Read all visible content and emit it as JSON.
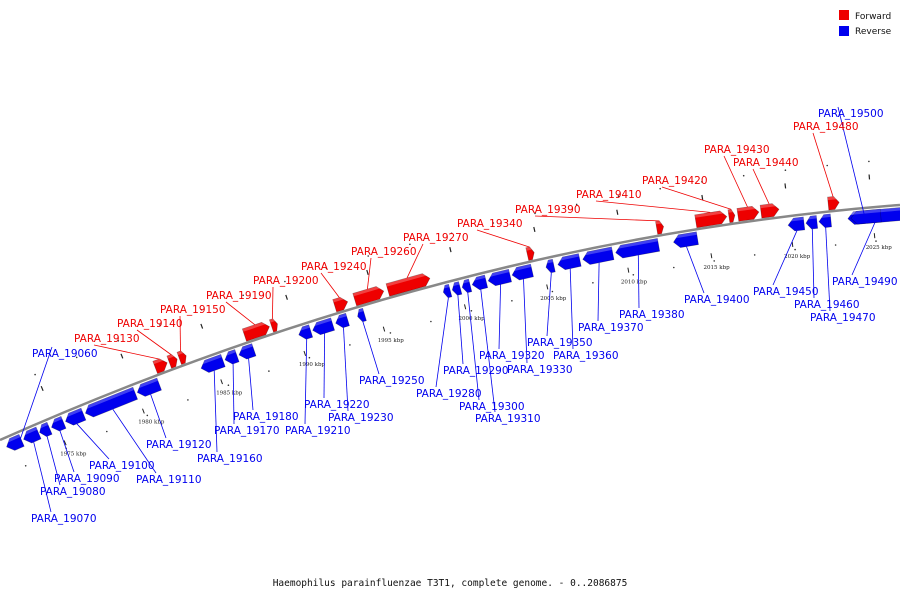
{
  "caption": "Haemophilus parainfluenzae T3T1, complete genome. - 0..2086875",
  "legend": [
    {
      "label": "Forward",
      "color": "#ee0000"
    },
    {
      "label": "Reverse",
      "color": "#0000ee"
    }
  ],
  "colors": {
    "forward": "#ee0000",
    "reverse": "#0000ee",
    "backbone": "#888888"
  },
  "kbp_ticks": [
    {
      "kbp": 1975,
      "label": "1975 kbp"
    },
    {
      "kbp": 1980,
      "label": "1980 kbp"
    },
    {
      "kbp": 1985,
      "label": "1985 kbp"
    },
    {
      "kbp": 1990,
      "label": "1990 kbp"
    },
    {
      "kbp": 1995,
      "label": "1995 kbp"
    },
    {
      "kbp": 2000,
      "label": "2000 kbp"
    },
    {
      "kbp": 2005,
      "label": "2005 kbp"
    },
    {
      "kbp": 2010,
      "label": "2010 kbp"
    },
    {
      "kbp": 2015,
      "label": "2015 kbp"
    },
    {
      "kbp": 2020,
      "label": "2020 kbp"
    },
    {
      "kbp": 2025,
      "label": "2025 kbp"
    }
  ],
  "genes": [
    {
      "name": "PARA_19060",
      "strand": "reverse"
    },
    {
      "name": "PARA_19070",
      "strand": "reverse"
    },
    {
      "name": "PARA_19080",
      "strand": "reverse"
    },
    {
      "name": "PARA_19090",
      "strand": "reverse"
    },
    {
      "name": "PARA_19100",
      "strand": "reverse"
    },
    {
      "name": "PARA_19110",
      "strand": "reverse"
    },
    {
      "name": "PARA_19120",
      "strand": "reverse"
    },
    {
      "name": "PARA_19130",
      "strand": "forward"
    },
    {
      "name": "PARA_19140",
      "strand": "forward"
    },
    {
      "name": "PARA_19150",
      "strand": "forward"
    },
    {
      "name": "PARA_19160",
      "strand": "reverse"
    },
    {
      "name": "PARA_19170",
      "strand": "reverse"
    },
    {
      "name": "PARA_19180",
      "strand": "reverse"
    },
    {
      "name": "PARA_19190",
      "strand": "forward"
    },
    {
      "name": "PARA_19200",
      "strand": "forward"
    },
    {
      "name": "PARA_19210",
      "strand": "reverse"
    },
    {
      "name": "PARA_19220",
      "strand": "reverse"
    },
    {
      "name": "PARA_19230",
      "strand": "reverse"
    },
    {
      "name": "PARA_19240",
      "strand": "forward"
    },
    {
      "name": "PARA_19250",
      "strand": "reverse"
    },
    {
      "name": "PARA_19260",
      "strand": "forward"
    },
    {
      "name": "PARA_19270",
      "strand": "forward"
    },
    {
      "name": "PARA_19280",
      "strand": "reverse"
    },
    {
      "name": "PARA_19290",
      "strand": "reverse"
    },
    {
      "name": "PARA_19300",
      "strand": "reverse"
    },
    {
      "name": "PARA_19310",
      "strand": "reverse"
    },
    {
      "name": "PARA_19320",
      "strand": "reverse"
    },
    {
      "name": "PARA_19330",
      "strand": "reverse"
    },
    {
      "name": "PARA_19340",
      "strand": "forward"
    },
    {
      "name": "PARA_19350",
      "strand": "reverse"
    },
    {
      "name": "PARA_19360",
      "strand": "reverse"
    },
    {
      "name": "PARA_19370",
      "strand": "reverse"
    },
    {
      "name": "PARA_19380",
      "strand": "reverse"
    },
    {
      "name": "PARA_19390",
      "strand": "forward"
    },
    {
      "name": "PARA_19400",
      "strand": "reverse"
    },
    {
      "name": "PARA_19410",
      "strand": "forward"
    },
    {
      "name": "PARA_19420",
      "strand": "forward"
    },
    {
      "name": "PARA_19430",
      "strand": "forward"
    },
    {
      "name": "PARA_19440",
      "strand": "forward"
    },
    {
      "name": "PARA_19450",
      "strand": "reverse"
    },
    {
      "name": "PARA_19460",
      "strand": "reverse"
    },
    {
      "name": "PARA_19470",
      "strand": "reverse"
    },
    {
      "name": "PARA_19480",
      "strand": "forward"
    },
    {
      "name": "PARA_19490",
      "strand": "reverse"
    },
    {
      "name": "PARA_19500",
      "strand": "reverse"
    }
  ]
}
